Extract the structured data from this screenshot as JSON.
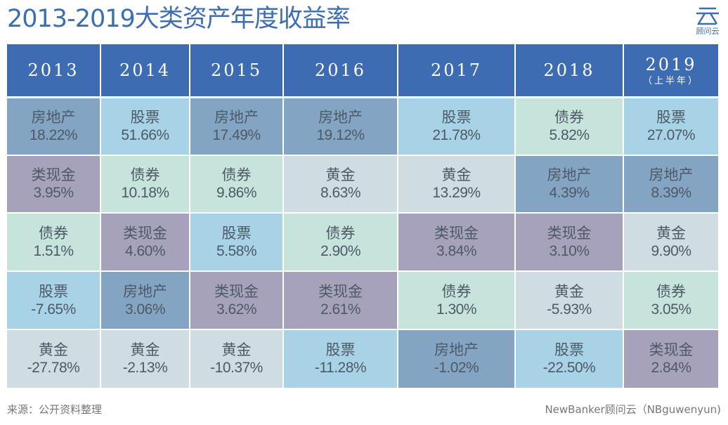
{
  "title": "2013-2019大类资产年度收益率",
  "logo": {
    "text": "顾问云",
    "glyph": "云"
  },
  "colors": {
    "header": "#3d6cb3",
    "房地产": "#84a4c3",
    "股票": "#a8d2e6",
    "债券": "#c7e4dc",
    "黄金": "#cfdde2",
    "类现金": "#a7a2bc"
  },
  "chart_data": {
    "type": "table",
    "title": "2013-2019大类资产年度收益率",
    "columns": [
      {
        "year": "2013",
        "sub": ""
      },
      {
        "year": "2014",
        "sub": ""
      },
      {
        "year": "2015",
        "sub": ""
      },
      {
        "year": "2016",
        "sub": ""
      },
      {
        "year": "2017",
        "sub": ""
      },
      {
        "year": "2018",
        "sub": ""
      },
      {
        "year": "2019",
        "sub": "（上半年）"
      }
    ],
    "rows": [
      [
        {
          "asset": "房地产",
          "value": "18.22%"
        },
        {
          "asset": "股票",
          "value": "51.66%"
        },
        {
          "asset": "房地产",
          "value": "17.49%"
        },
        {
          "asset": "房地产",
          "value": "19.12%"
        },
        {
          "asset": "股票",
          "value": "21.78%"
        },
        {
          "asset": "债券",
          "value": "5.82%"
        },
        {
          "asset": "股票",
          "value": "27.07%"
        }
      ],
      [
        {
          "asset": "类现金",
          "value": "3.95%"
        },
        {
          "asset": "债券",
          "value": "10.18%"
        },
        {
          "asset": "债券",
          "value": "9.86%"
        },
        {
          "asset": "黄金",
          "value": "8.63%"
        },
        {
          "asset": "黄金",
          "value": "13.29%"
        },
        {
          "asset": "房地产",
          "value": "4.39%"
        },
        {
          "asset": "房地产",
          "value": "8.39%"
        }
      ],
      [
        {
          "asset": "债券",
          "value": "1.51%"
        },
        {
          "asset": "类现金",
          "value": "4.60%"
        },
        {
          "asset": "股票",
          "value": "5.58%"
        },
        {
          "asset": "债券",
          "value": "2.90%"
        },
        {
          "asset": "类现金",
          "value": "3.84%"
        },
        {
          "asset": "类现金",
          "value": "3.10%"
        },
        {
          "asset": "黄金",
          "value": "9.90%"
        }
      ],
      [
        {
          "asset": "股票",
          "value": "-7.65%"
        },
        {
          "asset": "房地产",
          "value": "3.06%"
        },
        {
          "asset": "类现金",
          "value": "3.62%"
        },
        {
          "asset": "类现金",
          "value": "2.61%"
        },
        {
          "asset": "债券",
          "value": "1.30%"
        },
        {
          "asset": "黄金",
          "value": "-5.93%"
        },
        {
          "asset": "债券",
          "value": "3.05%"
        }
      ],
      [
        {
          "asset": "黄金",
          "value": "-27.78%"
        },
        {
          "asset": "黄金",
          "value": "-2.13%"
        },
        {
          "asset": "黄金",
          "value": "-10.37%"
        },
        {
          "asset": "股票",
          "value": "-11.28%"
        },
        {
          "asset": "房地产",
          "value": "-1.02%"
        },
        {
          "asset": "股票",
          "value": "-22.50%"
        },
        {
          "asset": "类现金",
          "value": "2.84%"
        }
      ]
    ]
  },
  "footer": {
    "source": "来源：公开资料整理",
    "credit": "NewBanker顾问云（NBguwenyun)"
  }
}
